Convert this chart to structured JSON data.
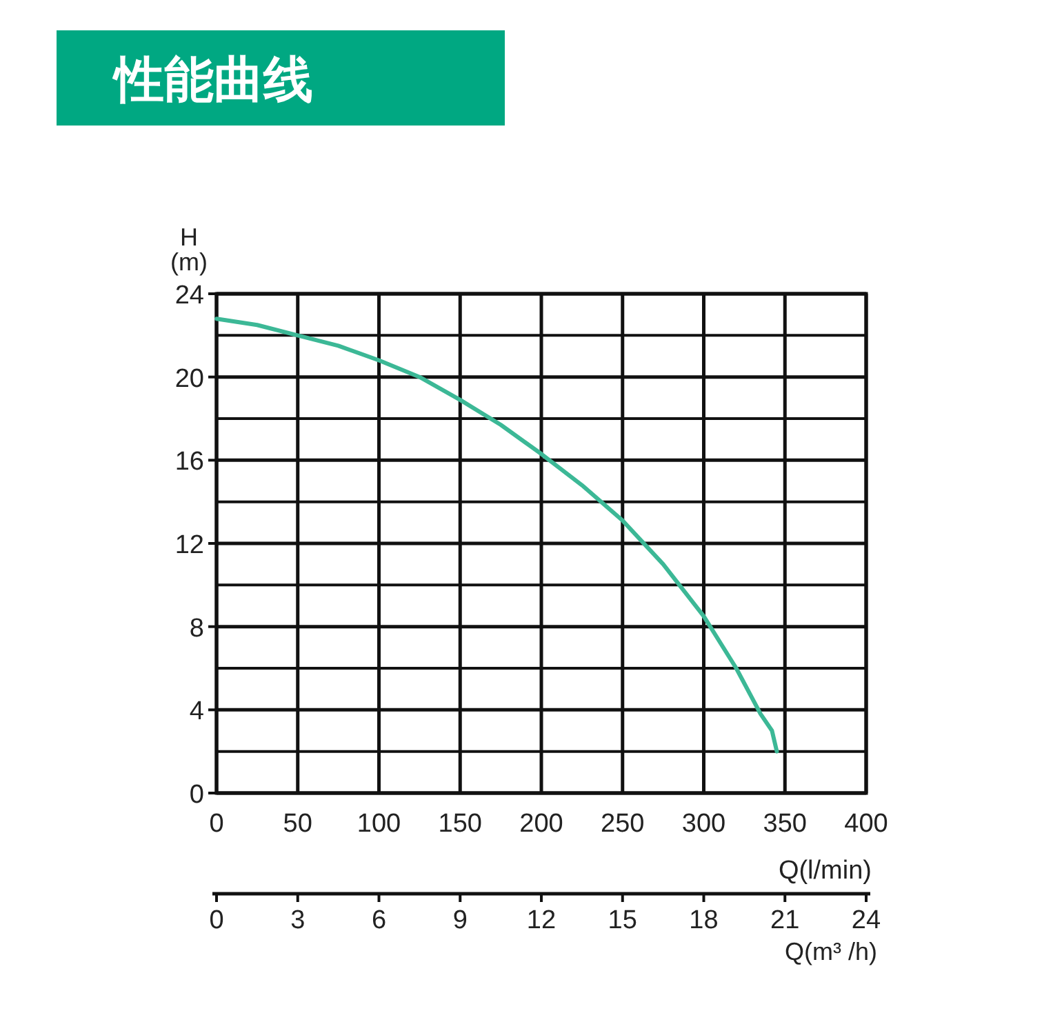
{
  "chart_data": {
    "type": "line",
    "title": "性能曲线",
    "xlabel": "Q(l/min)",
    "ylabel": "H (m)",
    "x2label": "Q(m³ /h)",
    "xlim": [
      0,
      400
    ],
    "xticks": [
      0,
      50,
      100,
      150,
      200,
      250,
      300,
      350,
      400
    ],
    "x2lim": [
      0,
      24
    ],
    "x2ticks": [
      0,
      3,
      6,
      9,
      12,
      15,
      18,
      21,
      24
    ],
    "ylim": [
      0,
      24
    ],
    "yticks": [
      0,
      4,
      8,
      12,
      16,
      20,
      24
    ],
    "grid": true,
    "line_style": "solid",
    "marker": "none",
    "series": [
      {
        "color": "#3cb896",
        "x": [
          0,
          25,
          50,
          75,
          100,
          125,
          150,
          175,
          200,
          225,
          250,
          275,
          300,
          320,
          335,
          342,
          345
        ],
        "values": [
          22.8,
          22.5,
          22.0,
          21.5,
          20.8,
          20.0,
          18.9,
          17.7,
          16.3,
          14.8,
          13.1,
          11.0,
          8.5,
          6.0,
          3.8,
          3.0,
          2.0
        ]
      }
    ]
  }
}
